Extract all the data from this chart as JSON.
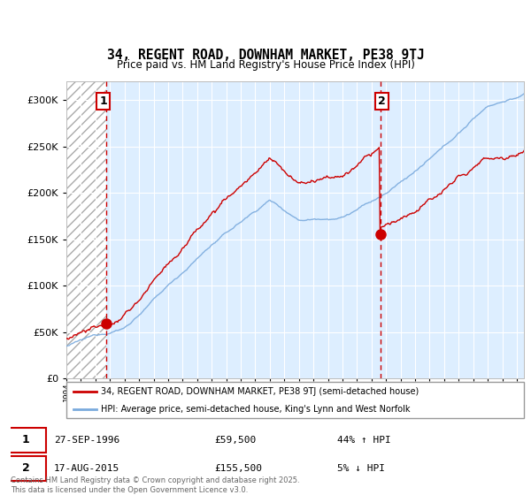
{
  "title": "34, REGENT ROAD, DOWNHAM MARKET, PE38 9TJ",
  "subtitle": "Price paid vs. HM Land Registry's House Price Index (HPI)",
  "legend_line1": "34, REGENT ROAD, DOWNHAM MARKET, PE38 9TJ (semi-detached house)",
  "legend_line2": "HPI: Average price, semi-detached house, King's Lynn and West Norfolk",
  "transaction1_date": "27-SEP-1996",
  "transaction1_price": "£59,500",
  "transaction1_hpi": "44% ↑ HPI",
  "transaction1_year": 1996.75,
  "transaction1_value": 59500,
  "transaction2_date": "17-AUG-2015",
  "transaction2_price": "£155,500",
  "transaction2_hpi": "5% ↓ HPI",
  "transaction2_year": 2015.62,
  "transaction2_value": 155500,
  "red_color": "#cc0000",
  "blue_color": "#7aaadd",
  "plot_bg_color": "#ddeeff",
  "footer": "Contains HM Land Registry data © Crown copyright and database right 2025.\nThis data is licensed under the Open Government Licence v3.0.",
  "ylim": [
    0,
    320000
  ],
  "xlim_start": 1994.0,
  "xlim_end": 2025.5
}
